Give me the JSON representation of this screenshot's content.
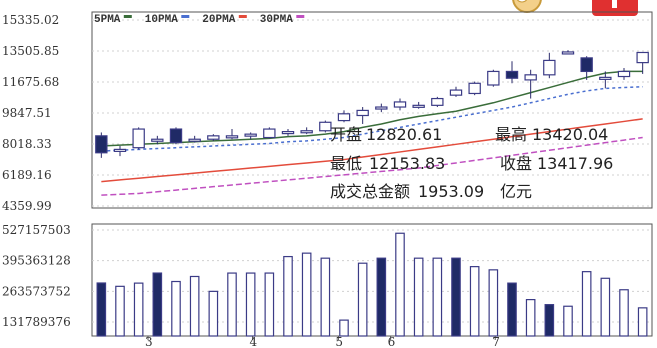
{
  "chart_data": {
    "type": "candlestick",
    "ma_legend": [
      {
        "label": "5PMA",
        "color": "#3a6d3a"
      },
      {
        "label": "10PMA",
        "color": "#4a6fd0"
      },
      {
        "label": "20PMA",
        "color": "#e34b3b"
      },
      {
        "label": "30PMA",
        "color": "#c050c0"
      }
    ],
    "price_axis": {
      "tick_labels": [
        "15335.02",
        "13505.85",
        "11675.68",
        "9847.51",
        "8018.33",
        "6189.16",
        "4359.99"
      ],
      "ylim": [
        4359.99,
        15335.02
      ]
    },
    "volume_axis": {
      "tick_labels": [
        "527157503",
        "395363128",
        "263573752",
        "131789376"
      ],
      "ylim": [
        0,
        527157503
      ]
    },
    "x_tick_labels": [
      "3",
      "4",
      "5",
      "6",
      "7"
    ],
    "candles": [
      {
        "open": 7500,
        "close": 8500,
        "high": 8700,
        "low": 7200,
        "dir": "down"
      },
      {
        "open": 7600,
        "close": 7700,
        "high": 7900,
        "low": 7300,
        "dir": "up"
      },
      {
        "open": 7800,
        "close": 8900,
        "high": 9000,
        "low": 7700,
        "dir": "up"
      },
      {
        "open": 8200,
        "close": 8300,
        "high": 8500,
        "low": 8000,
        "dir": "up"
      },
      {
        "open": 8100,
        "close": 8900,
        "high": 9000,
        "low": 8000,
        "dir": "down"
      },
      {
        "open": 8250,
        "close": 8300,
        "high": 8500,
        "low": 8100,
        "dir": "up"
      },
      {
        "open": 8300,
        "close": 8500,
        "high": 8600,
        "low": 8200,
        "dir": "up"
      },
      {
        "open": 8450,
        "close": 8500,
        "high": 8900,
        "low": 8300,
        "dir": "up"
      },
      {
        "open": 8500,
        "close": 8600,
        "high": 8700,
        "low": 8300,
        "dir": "up"
      },
      {
        "open": 8400,
        "close": 8900,
        "high": 9000,
        "low": 8350,
        "dir": "up"
      },
      {
        "open": 8700,
        "close": 8750,
        "high": 8900,
        "low": 8500,
        "dir": "up"
      },
      {
        "open": 8750,
        "close": 8800,
        "high": 9000,
        "low": 8600,
        "dir": "up"
      },
      {
        "open": 8800,
        "close": 9300,
        "high": 9400,
        "low": 8700,
        "dir": "up"
      },
      {
        "open": 9400,
        "close": 9800,
        "high": 10000,
        "low": 9300,
        "dir": "up"
      },
      {
        "open": 9700,
        "close": 10000,
        "high": 10200,
        "low": 9200,
        "dir": "up"
      },
      {
        "open": 10100,
        "close": 10200,
        "high": 10400,
        "low": 9900,
        "dir": "up"
      },
      {
        "open": 10200,
        "close": 10500,
        "high": 10700,
        "low": 10000,
        "dir": "up"
      },
      {
        "open": 10250,
        "close": 10300,
        "high": 10500,
        "low": 10100,
        "dir": "up"
      },
      {
        "open": 10300,
        "close": 10700,
        "high": 10800,
        "low": 10200,
        "dir": "up"
      },
      {
        "open": 10900,
        "close": 11200,
        "high": 11400,
        "low": 10800,
        "dir": "up"
      },
      {
        "open": 11000,
        "close": 11600,
        "high": 11700,
        "low": 10900,
        "dir": "up"
      },
      {
        "open": 11500,
        "close": 12300,
        "high": 12400,
        "low": 11400,
        "dir": "up"
      },
      {
        "open": 11900,
        "close": 12300,
        "high": 12900,
        "low": 11600,
        "dir": "down"
      },
      {
        "open": 11800,
        "close": 12100,
        "high": 12400,
        "low": 10700,
        "dir": "up"
      },
      {
        "open": 12100,
        "close": 12950,
        "high": 13400,
        "low": 11900,
        "dir": "up"
      },
      {
        "open": 13400,
        "close": 13450,
        "high": 13550,
        "low": 13300,
        "dir": "up"
      },
      {
        "open": 12300,
        "close": 13100,
        "high": 13200,
        "low": 11800,
        "dir": "down"
      },
      {
        "open": 11900,
        "close": 11950,
        "high": 12300,
        "low": 11300,
        "dir": "up"
      },
      {
        "open": 12000,
        "close": 12300,
        "high": 12500,
        "low": 11800,
        "dir": "up"
      },
      {
        "open": 12820.61,
        "close": 13417.96,
        "high": 13420.04,
        "low": 12153.83,
        "dir": "up"
      }
    ],
    "ma": {
      "ma5": [
        7900,
        7950,
        8000,
        8050,
        8100,
        8150,
        8200,
        8250,
        8300,
        8350,
        8450,
        8500,
        8600,
        8750,
        9000,
        9200,
        9450,
        9650,
        9800,
        9950,
        10200,
        10450,
        10750,
        11050,
        11350,
        11650,
        11950,
        12200,
        12300,
        12300
      ],
      "ma10": [
        7600,
        7650,
        7700,
        7750,
        7800,
        7850,
        7900,
        7950,
        8000,
        8050,
        8150,
        8200,
        8300,
        8400,
        8600,
        8800,
        9000,
        9200,
        9400,
        9600,
        9800,
        10000,
        10200,
        10450,
        10700,
        10950,
        11150,
        11300,
        11350,
        11400
      ],
      "ma20": [
        5800,
        5900,
        6000,
        6100,
        6200,
        6300,
        6400,
        6500,
        6600,
        6700,
        6800,
        6900,
        7000,
        7100,
        7250,
        7400,
        7550,
        7700,
        7850,
        8000,
        8150,
        8300,
        8450,
        8600,
        8750,
        8900,
        9050,
        9200,
        9350,
        9500
      ],
      "ma30": [
        5000,
        5050,
        5100,
        5200,
        5300,
        5400,
        5500,
        5600,
        5700,
        5800,
        5900,
        6000,
        6100,
        6200,
        6300,
        6400,
        6500,
        6600,
        6750,
        6900,
        7050,
        7200,
        7350,
        7500,
        7650,
        7800,
        7950,
        8100,
        8250,
        8400
      ]
    },
    "volumes": [
      263573752,
      247000000,
      263000000,
      313000000,
      271000000,
      296000000,
      222000000,
      313000000,
      313000000,
      313000000,
      395000000,
      412000000,
      387000000,
      79000000,
      362000000,
      387000000,
      511000000,
      387000000,
      387000000,
      387000000,
      345000000,
      329000000,
      263000000,
      181000000,
      156000000,
      148000000,
      320000000,
      287000000,
      230000000,
      140000000
    ],
    "volume_dir": [
      "down",
      "up",
      "up",
      "down",
      "up",
      "up",
      "up",
      "up",
      "up",
      "up",
      "up",
      "up",
      "up",
      "up",
      "up",
      "down",
      "up",
      "up",
      "up",
      "down",
      "up",
      "up",
      "down",
      "up",
      "down",
      "up",
      "up",
      "up",
      "up",
      "up"
    ]
  },
  "info_panel": {
    "open_label": "开盘",
    "open_value": "12820.61",
    "high_label": "最高",
    "high_value": "13420.04",
    "low_label": "最低",
    "low_value": "12153.83",
    "close_label": "收盘",
    "close_value": "13417.96",
    "amount_label": "成交总金额",
    "amount_value": "1953.09",
    "amount_unit": "亿元"
  },
  "colors": {
    "up_candle": "#3b3b86",
    "down_candle": "#1f2a66",
    "grid": "#c8c8c8",
    "border": "#555555"
  }
}
